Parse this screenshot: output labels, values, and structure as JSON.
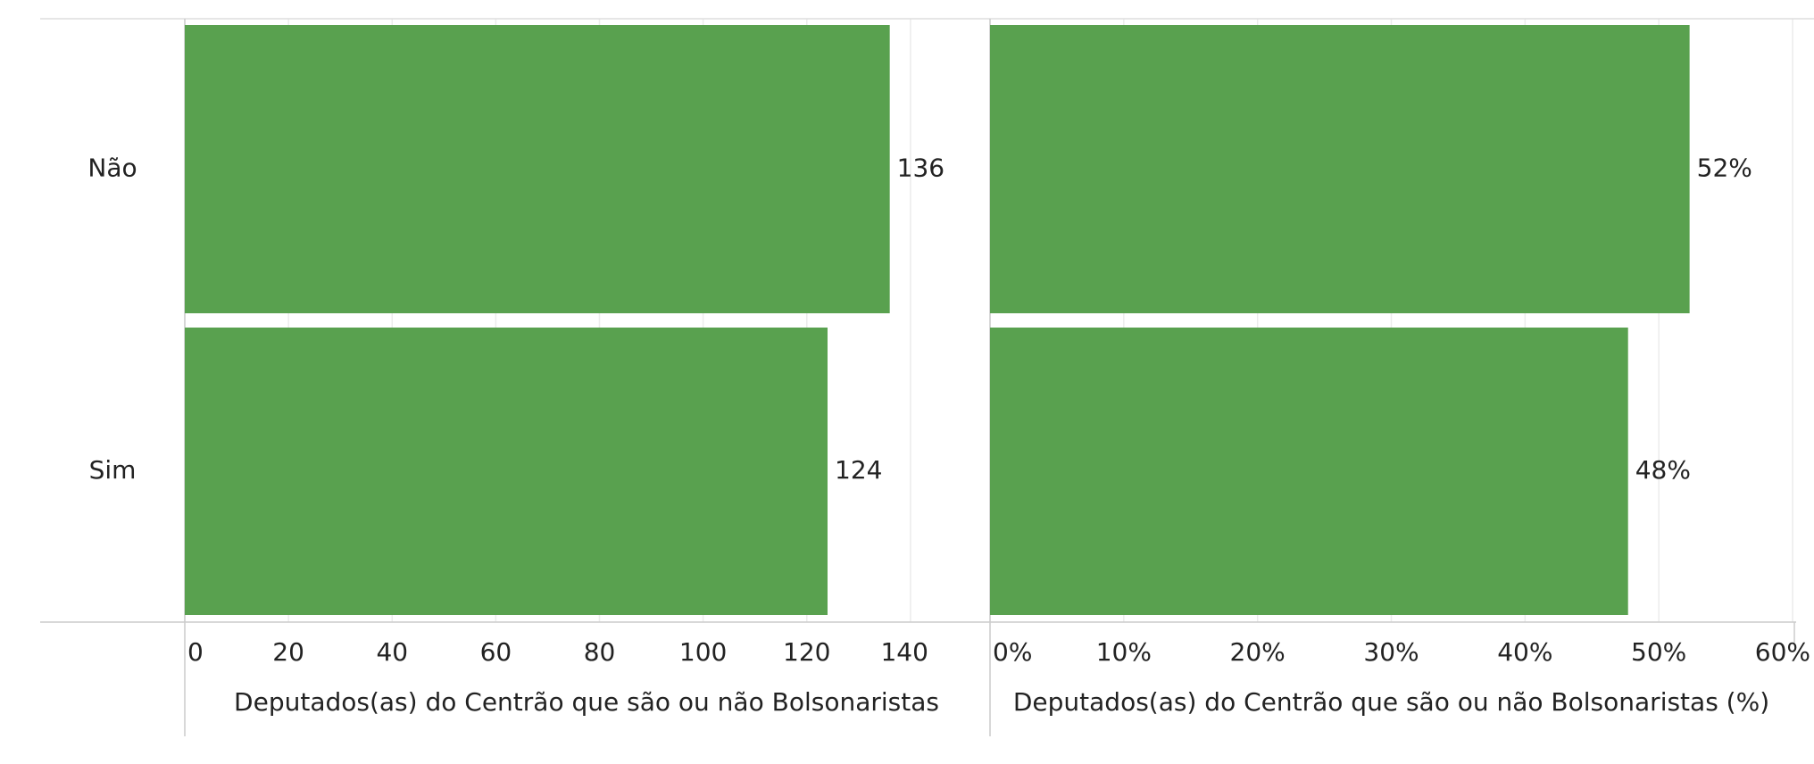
{
  "chart_data": [
    {
      "type": "bar",
      "orientation": "horizontal",
      "categories": [
        "Não",
        "Sim"
      ],
      "values": [
        136,
        124
      ],
      "color": "#59a14f",
      "xlabel": "Deputados(as) do Centrão que são ou não Bolsonaristas",
      "xlim": [
        0,
        155
      ],
      "xticks": [
        0,
        20,
        40,
        60,
        80,
        100,
        120,
        140
      ],
      "grid": true
    },
    {
      "type": "bar",
      "orientation": "horizontal",
      "values": [
        52.3,
        47.7
      ],
      "value_labels": [
        "52%",
        "48%"
      ],
      "color": "#59a14f",
      "xlabel": "Deputados(as) do Centrão que são ou não Bolsonaristas (%)",
      "xlim": [
        0,
        60
      ],
      "xticks": [
        {
          "value": 0,
          "label": "0%"
        },
        {
          "value": 10,
          "label": "10%"
        },
        {
          "value": 20,
          "label": "20%"
        },
        {
          "value": 30,
          "label": "30%"
        },
        {
          "value": 40,
          "label": "40%"
        },
        {
          "value": 50,
          "label": "50%"
        },
        {
          "value": 60,
          "label": "60%"
        }
      ],
      "grid": true
    }
  ]
}
